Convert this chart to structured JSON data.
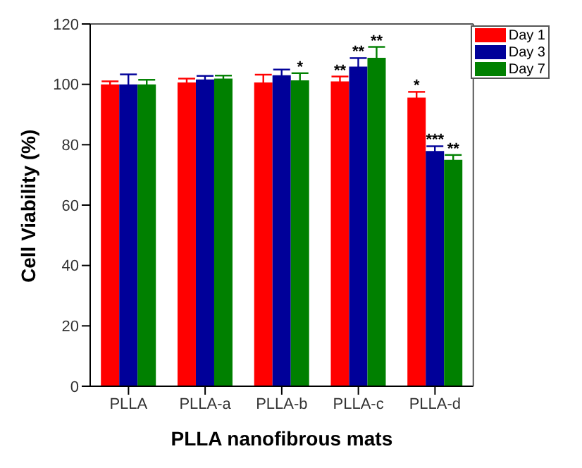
{
  "chart_data": {
    "type": "bar",
    "xlabel": "PLLA nanofibrous mats",
    "ylabel": "Cell Viability (%)",
    "categories": [
      "PLLA",
      "PLLA-a",
      "PLLA-b",
      "PLLA-c",
      "PLLA-d"
    ],
    "series": [
      {
        "name": "Day 1",
        "color": "#ff0000",
        "values": [
          100,
          100.6,
          100.6,
          101,
          95.6
        ],
        "errors": [
          1,
          1.3,
          2.6,
          1.6,
          1.9
        ],
        "value_labels": [
          null,
          null,
          null,
          "**",
          "*"
        ]
      },
      {
        "name": "Day 3",
        "color": "#000099",
        "values": [
          100,
          101.6,
          103,
          105.9,
          77.9
        ],
        "errors": [
          3.3,
          1.2,
          1.9,
          2.8,
          1.6
        ],
        "value_labels": [
          null,
          null,
          null,
          "**",
          "***"
        ]
      },
      {
        "name": "Day 7",
        "color": "#008000",
        "values": [
          100,
          101.9,
          101.3,
          108.8,
          75
        ],
        "errors": [
          1.5,
          1,
          2.4,
          3.6,
          1.6
        ],
        "value_labels": [
          null,
          null,
          "*",
          "**",
          "**"
        ]
      }
    ],
    "ylim": [
      0,
      120
    ],
    "yticks": [
      0,
      20,
      40,
      60,
      80,
      100,
      120
    ],
    "grid": false,
    "legend": "top right"
  }
}
